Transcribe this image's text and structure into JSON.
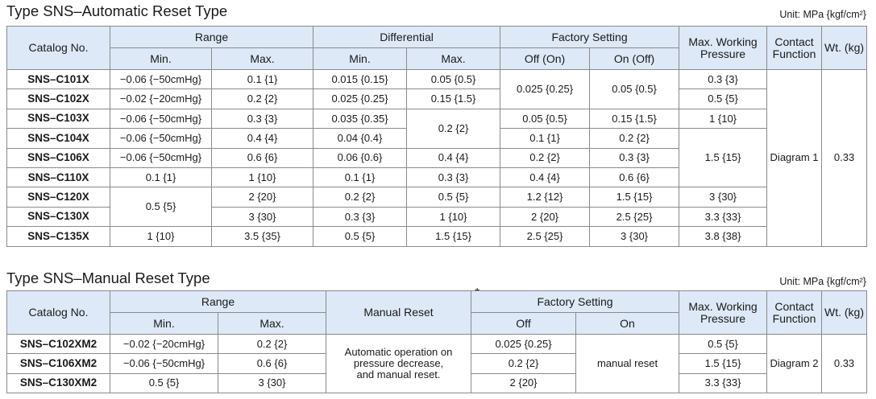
{
  "auto": {
    "title": "Type SNS–Automatic Reset Type",
    "unit": "Unit: MPa {kgf/cm²}",
    "h_catalog": "Catalog No.",
    "h_range": "Range",
    "h_differential": "Differential",
    "h_factory": "Factory Setting",
    "h_maxwp": "Max. Working Pressure",
    "h_contact": "Contact Function",
    "h_wt": "Wt. (kg)",
    "h_min": "Min.",
    "h_max": "Max.",
    "h_off_on": "Off (On)",
    "h_on_off": "On (Off)",
    "rows": [
      {
        "cat": "SNS–C101X",
        "rmin": "−0.06 {−50cmHg}",
        "rmax": "0.1 {1}",
        "dmin": "0.015 {0.15}",
        "dmax": "0.05 {0.5}",
        "off": "0.025 {0.25}",
        "on": "0.05 {0.5}",
        "mwp": "0.3 {3}"
      },
      {
        "cat": "SNS–C102X",
        "rmin": "−0.02 {−20cmHg}",
        "rmax": "0.2 {2}",
        "dmin": "0.025 {0.25}",
        "dmax": "0.15 {1.5}",
        "mwp": "0.5 {5}"
      },
      {
        "cat": "SNS–C103X",
        "rmin": "−0.06 {−50cmHg}",
        "rmax": "0.3 {3}",
        "dmin": "0.035 {0.35}",
        "dmax": "0.2 {2}",
        "off": "0.05 {0.5}",
        "on": "0.15 {1.5}",
        "mwp": "1 {10}"
      },
      {
        "cat": "SNS–C104X",
        "rmin": "−0.06 {−50cmHg}",
        "rmax": "0.4 {4}",
        "dmin": "0.04 {0.4}",
        "off": "0.1 {1}",
        "on": "0.2 {2}"
      },
      {
        "cat": "SNS–C106X",
        "rmin": "−0.06 {−50cmHg}",
        "rmax": "0.6 {6}",
        "dmin": "0.06 {0.6}",
        "dmax": "0.4 {4}",
        "off": "0.2 {2}",
        "on": "0.3 {3}",
        "mwp": "1.5 {15}"
      },
      {
        "cat": "SNS–C110X",
        "rmin": "0.1 {1}",
        "rmax": "1 {10}",
        "dmin": "0.1 {1}",
        "dmax": "0.3 {3}",
        "off": "0.4 {4}",
        "on": "0.6 {6}"
      },
      {
        "cat": "SNS–C120X",
        "rmin": "0.5 {5}",
        "rmax": "2 {20}",
        "dmin": "0.2 {2}",
        "dmax": "0.5 {5}",
        "off": "1.2 {12}",
        "on": "1.5 {15}",
        "mwp": "3 {30}"
      },
      {
        "cat": "SNS–C130X",
        "rmax": "3 {30}",
        "dmin": "0.3 {3}",
        "dmax": "1 {10}",
        "off": "2 {20}",
        "on": "2.5 {25}",
        "mwp": "3.3 {33}"
      },
      {
        "cat": "SNS–C135X",
        "rmin": "1 {10}",
        "rmax": "3.5 {35}",
        "dmin": "0.5 {5}",
        "dmax": "1.5 {15}",
        "off": "2.5 {25}",
        "on": "3 {30}",
        "mwp": "3.8 {38}"
      }
    ],
    "contact": "Diagram 1",
    "wt": "0.33"
  },
  "manual": {
    "title": "Type SNS–Manual Reset Type",
    "unit": "Unit: MPa {kgf/cm²}",
    "star": "*",
    "h_catalog": "Catalog No.",
    "h_range": "Range",
    "h_manual": "Manual Reset",
    "h_factory": "Factory Setting",
    "h_maxwp": "Max. Working Pressure",
    "h_contact": "Contact Function",
    "h_wt": "Wt. (kg)",
    "h_min": "Min.",
    "h_max": "Max.",
    "h_off": "Off",
    "h_on": "On",
    "rows": [
      {
        "cat": "SNS–C102XM2",
        "rmin": "−0.02 {−20cmHg}",
        "rmax": "0.2 {2}",
        "off": "0.025 {0.25}",
        "mwp": "0.5 {5}"
      },
      {
        "cat": "SNS–C106XM2",
        "rmin": "−0.06 {−50cmHg}",
        "rmax": "0.6 {6}",
        "off": "0.2 {2}",
        "mwp": "1.5 {15}"
      },
      {
        "cat": "SNS–C130XM2",
        "rmin": "0.5 {5}",
        "rmax": "3 {30}",
        "off": "2 {20}",
        "mwp": "3.3 {33}"
      }
    ],
    "manual_reset": "Automatic operation on pressure decrease, and manual reset.",
    "on": "manual reset",
    "contact": "Diagram 2",
    "wt": "0.33"
  }
}
